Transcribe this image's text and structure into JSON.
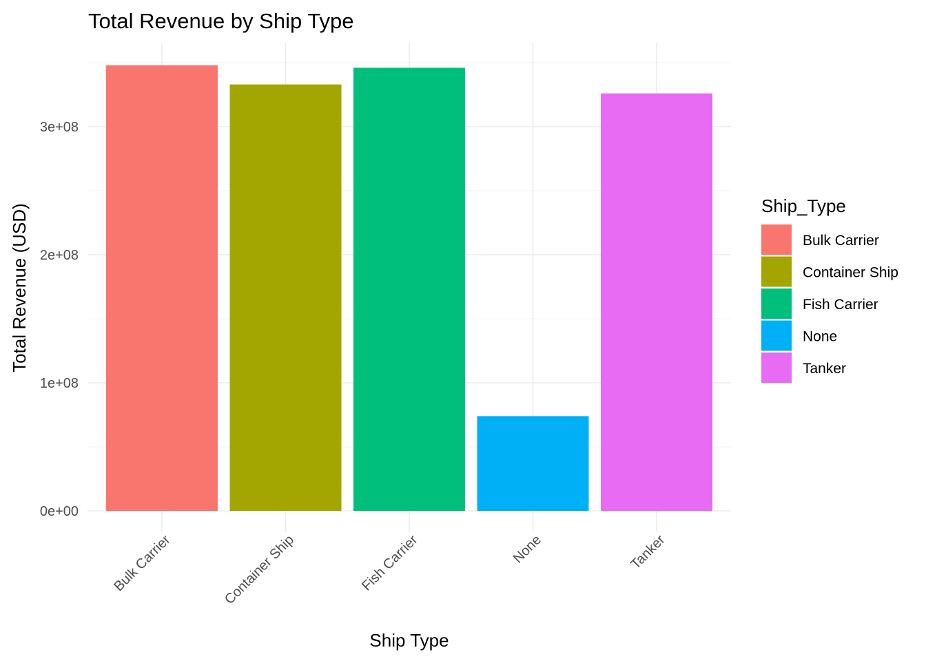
{
  "chart_data": {
    "type": "bar",
    "title": "Total Revenue by Ship Type",
    "xlabel": "Ship Type",
    "ylabel": "Total Revenue (USD)",
    "categories": [
      "Bulk Carrier",
      "Container Ship",
      "Fish Carrier",
      "None",
      "Tanker"
    ],
    "values": [
      348000000,
      333000000,
      346000000,
      74000000,
      326000000
    ],
    "colors": [
      "#F8766D",
      "#A3A500",
      "#00BF7D",
      "#00B0F6",
      "#E76BF3"
    ],
    "ylim": [
      0,
      350000000
    ],
    "yticks": [
      0,
      100000000,
      200000000,
      300000000
    ],
    "ytick_labels": [
      "0e+00",
      "1e+08",
      "2e+08",
      "3e+08"
    ],
    "grid": true,
    "legend": {
      "title": "Ship_Type",
      "position": "right",
      "items": [
        "Bulk Carrier",
        "Container Ship",
        "Fish Carrier",
        "None",
        "Tanker"
      ]
    }
  }
}
